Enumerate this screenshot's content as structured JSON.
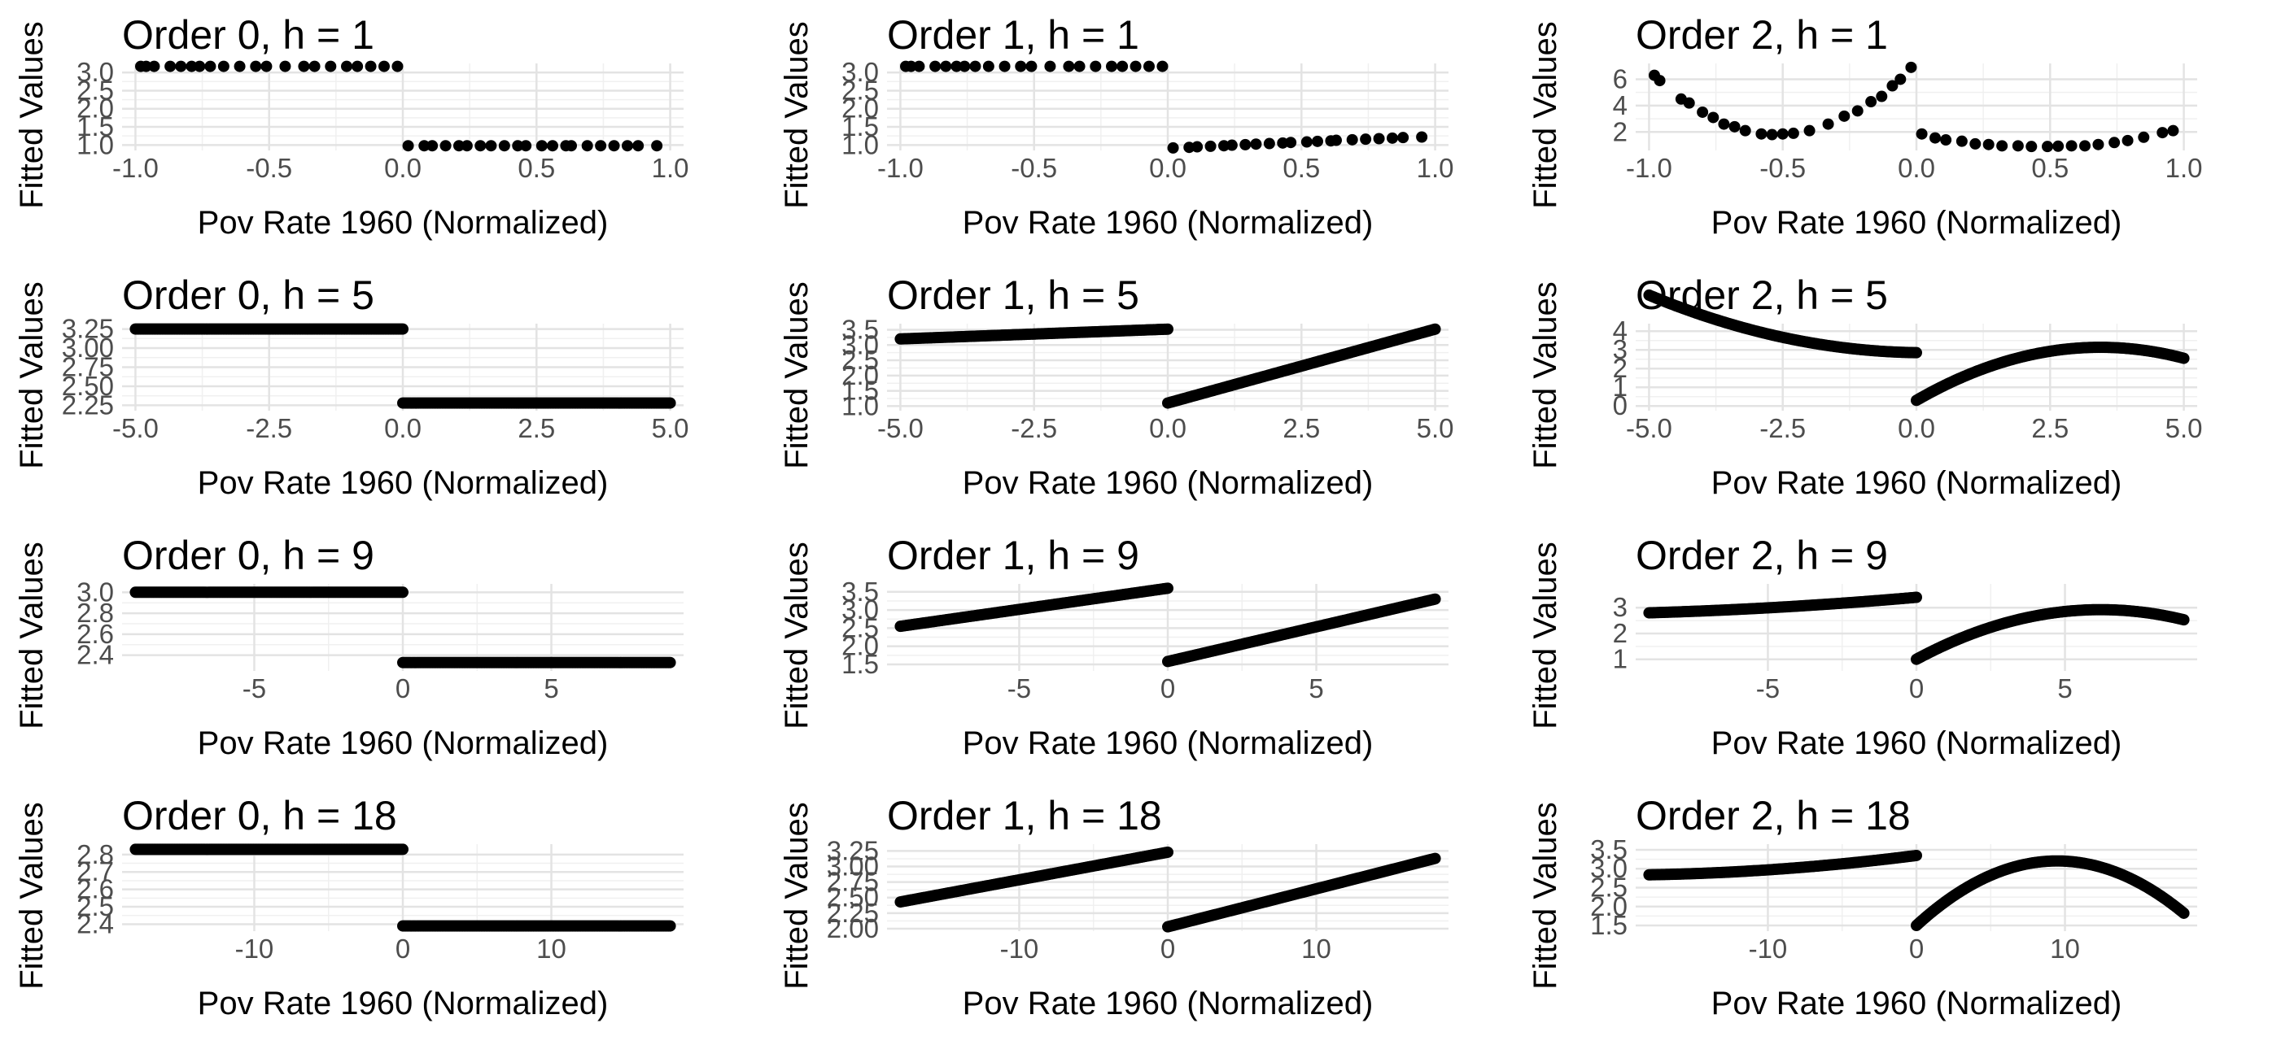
{
  "chart_data": [
    {
      "type": "scatter",
      "title": "Order 0, h = 1",
      "xlabel": "Pov Rate 1960 (Normalized)",
      "ylabel": "Fitted Values",
      "xlim": [
        -1.05,
        1.05
      ],
      "ylim": [
        0.85,
        3.25
      ],
      "xticks": [
        {
          "v": -1,
          "l": "-1.0"
        },
        {
          "v": -0.5,
          "l": "-0.5"
        },
        {
          "v": 0,
          "l": "0.0"
        },
        {
          "v": 0.5,
          "l": "0.5"
        },
        {
          "v": 1,
          "l": "1.0"
        }
      ],
      "yticks": [
        {
          "v": 1.0,
          "l": "1.0"
        },
        {
          "v": 1.5,
          "l": "1.5"
        },
        {
          "v": 2.0,
          "l": "2.0"
        },
        {
          "v": 2.5,
          "l": "2.5"
        },
        {
          "v": 3.0,
          "l": "3.0"
        }
      ],
      "grid": true,
      "legend": "none",
      "left": {
        "x": [
          -0.98,
          -0.96,
          -0.93,
          -0.87,
          -0.83,
          -0.79,
          -0.76,
          -0.72,
          -0.67,
          -0.61,
          -0.55,
          -0.51,
          -0.44,
          -0.37,
          -0.33,
          -0.27,
          -0.21,
          -0.17,
          -0.12,
          -0.07,
          -0.02
        ],
        "y": 3.17
      },
      "right": {
        "x": [
          0.02,
          0.08,
          0.11,
          0.16,
          0.21,
          0.24,
          0.29,
          0.33,
          0.38,
          0.43,
          0.46,
          0.52,
          0.56,
          0.61,
          0.63,
          0.69,
          0.74,
          0.79,
          0.84,
          0.88,
          0.95
        ],
        "y": 0.98
      }
    },
    {
      "type": "scatter",
      "title": "Order 1, h = 1",
      "xlabel": "Pov Rate 1960 (Normalized)",
      "ylabel": "Fitted Values",
      "xlim": [
        -1.05,
        1.05
      ],
      "ylim": [
        0.85,
        3.25
      ],
      "xticks": [
        {
          "v": -1,
          "l": "-1.0"
        },
        {
          "v": -0.5,
          "l": "-0.5"
        },
        {
          "v": 0,
          "l": "0.0"
        },
        {
          "v": 0.5,
          "l": "0.5"
        },
        {
          "v": 1,
          "l": "1.0"
        }
      ],
      "yticks": [
        {
          "v": 1.0,
          "l": "1.0"
        },
        {
          "v": 1.5,
          "l": "1.5"
        },
        {
          "v": 2.0,
          "l": "2.0"
        },
        {
          "v": 2.5,
          "l": "2.5"
        },
        {
          "v": 3.0,
          "l": "3.0"
        }
      ],
      "grid": true,
      "legend": "none",
      "left": {
        "x": [
          -0.98,
          -0.96,
          -0.93,
          -0.87,
          -0.83,
          -0.79,
          -0.76,
          -0.72,
          -0.67,
          -0.61,
          -0.55,
          -0.51,
          -0.44,
          -0.37,
          -0.33,
          -0.27,
          -0.21,
          -0.17,
          -0.12,
          -0.07,
          -0.02
        ],
        "y0": 3.17,
        "y1": 3.17
      },
      "right": {
        "x": [
          0.02,
          0.08,
          0.11,
          0.16,
          0.21,
          0.24,
          0.29,
          0.33,
          0.38,
          0.43,
          0.46,
          0.52,
          0.56,
          0.61,
          0.63,
          0.69,
          0.74,
          0.79,
          0.84,
          0.88,
          0.95
        ],
        "y0": 0.92,
        "y1": 1.22
      }
    },
    {
      "type": "scatter",
      "title": "Order 2, h = 1",
      "xlabel": "Pov Rate 1960 (Normalized)",
      "ylabel": "Fitted Values",
      "xlim": [
        -1.05,
        1.05
      ],
      "ylim": [
        0.6,
        7.2
      ],
      "xticks": [
        {
          "v": -1,
          "l": "-1.0"
        },
        {
          "v": -0.5,
          "l": "-0.5"
        },
        {
          "v": 0,
          "l": "0.0"
        },
        {
          "v": 0.5,
          "l": "0.5"
        },
        {
          "v": 1,
          "l": "1.0"
        }
      ],
      "yticks": [
        {
          "v": 2,
          "l": "2"
        },
        {
          "v": 4,
          "l": "4"
        },
        {
          "v": 6,
          "l": "6"
        }
      ],
      "grid": true,
      "legend": "none",
      "left": {
        "x": [
          -0.98,
          -0.96,
          -0.88,
          -0.85,
          -0.8,
          -0.76,
          -0.72,
          -0.68,
          -0.64,
          -0.58,
          -0.54,
          -0.5,
          -0.46,
          -0.4,
          -0.33,
          -0.27,
          -0.22,
          -0.17,
          -0.13,
          -0.09,
          -0.06,
          -0.02
        ],
        "y": [
          6.3,
          5.9,
          4.5,
          4.2,
          3.5,
          3.1,
          2.6,
          2.4,
          2.1,
          1.85,
          1.8,
          1.85,
          1.9,
          2.1,
          2.6,
          3.2,
          3.6,
          4.3,
          4.7,
          5.5,
          6.0,
          6.9
        ]
      },
      "right": {
        "x": [
          0.02,
          0.07,
          0.11,
          0.17,
          0.22,
          0.27,
          0.32,
          0.38,
          0.43,
          0.49,
          0.53,
          0.58,
          0.63,
          0.68,
          0.74,
          0.79,
          0.85,
          0.92,
          0.96
        ],
        "y": [
          1.85,
          1.55,
          1.4,
          1.3,
          1.1,
          1.05,
          0.95,
          0.95,
          0.9,
          0.9,
          0.92,
          0.95,
          0.95,
          1.05,
          1.2,
          1.35,
          1.6,
          1.95,
          2.1
        ]
      }
    },
    {
      "type": "scatter",
      "title": "Order 0, h = 5",
      "xlabel": "Pov Rate 1960 (Normalized)",
      "ylabel": "Fitted Values",
      "xlim": [
        -5.25,
        5.25
      ],
      "ylim": [
        2.18,
        3.32
      ],
      "xticks": [
        {
          "v": -5,
          "l": "-5.0"
        },
        {
          "v": -2.5,
          "l": "-2.5"
        },
        {
          "v": 0,
          "l": "0.0"
        },
        {
          "v": 2.5,
          "l": "2.5"
        },
        {
          "v": 5,
          "l": "5.0"
        }
      ],
      "yticks": [
        {
          "v": 2.25,
          "l": "2.25"
        },
        {
          "v": 2.5,
          "l": "2.50"
        },
        {
          "v": 2.75,
          "l": "2.75"
        },
        {
          "v": 3.0,
          "l": "3.00"
        },
        {
          "v": 3.25,
          "l": "3.25"
        }
      ],
      "grid": true,
      "legend": "none",
      "left": {
        "x0": -5,
        "x1": 0,
        "y0": 3.25,
        "y1": 3.25
      },
      "right": {
        "x0": 0,
        "x1": 5,
        "y0": 2.28,
        "y1": 2.28
      }
    },
    {
      "type": "scatter",
      "title": "Order 1, h = 5",
      "xlabel": "Pov Rate 1960 (Normalized)",
      "ylabel": "Fitted Values",
      "xlim": [
        -5.25,
        5.25
      ],
      "ylim": [
        0.85,
        3.7
      ],
      "xticks": [
        {
          "v": -5,
          "l": "-5.0"
        },
        {
          "v": -2.5,
          "l": "-2.5"
        },
        {
          "v": 0,
          "l": "0.0"
        },
        {
          "v": 2.5,
          "l": "2.5"
        },
        {
          "v": 5,
          "l": "5.0"
        }
      ],
      "yticks": [
        {
          "v": 1.0,
          "l": "1.0"
        },
        {
          "v": 1.5,
          "l": "1.5"
        },
        {
          "v": 2.0,
          "l": "2.0"
        },
        {
          "v": 2.5,
          "l": "2.5"
        },
        {
          "v": 3.0,
          "l": "3.0"
        },
        {
          "v": 3.5,
          "l": "3.5"
        }
      ],
      "grid": true,
      "legend": "none",
      "left": {
        "x0": -5,
        "x1": 0,
        "y0": 3.2,
        "y1": 3.52
      },
      "right": {
        "x0": 0,
        "x1": 5,
        "y0": 1.1,
        "y1": 3.52
      }
    },
    {
      "type": "scatter",
      "title": "Order 2, h = 5",
      "xlabel": "Pov Rate 1960 (Normalized)",
      "ylabel": "Fitted Values",
      "xlim": [
        -5.25,
        5.25
      ],
      "ylim": [
        -0.25,
        4.4
      ],
      "xticks": [
        {
          "v": -5,
          "l": "-5.0"
        },
        {
          "v": -2.5,
          "l": "-2.5"
        },
        {
          "v": 0,
          "l": "0.0"
        },
        {
          "v": 2.5,
          "l": "2.5"
        },
        {
          "v": 5,
          "l": "5.0"
        }
      ],
      "yticks": [
        {
          "v": 0,
          "l": "0"
        },
        {
          "v": 1,
          "l": "1"
        },
        {
          "v": 2,
          "l": "2"
        },
        {
          "v": 3,
          "l": "3"
        },
        {
          "v": 4,
          "l": "4"
        }
      ],
      "grid": true,
      "legend": "none",
      "left": {
        "x0": -5,
        "x1": 0,
        "poly": [
          2.85,
          -0.04,
          0.115
        ]
      },
      "right": {
        "x0": 0,
        "x1": 5,
        "poly": [
          0.3,
          1.65,
          -0.24
        ]
      }
    },
    {
      "type": "scatter",
      "title": "Order 0, h = 9",
      "xlabel": "Pov Rate 1960 (Normalized)",
      "ylabel": "Fitted Values",
      "xlim": [
        -9.45,
        9.45
      ],
      "ylim": [
        2.25,
        3.08
      ],
      "xticks": [
        {
          "v": -5,
          "l": "-5"
        },
        {
          "v": 0,
          "l": "0"
        },
        {
          "v": 5,
          "l": "5"
        }
      ],
      "yticks": [
        {
          "v": 2.4,
          "l": "2.4"
        },
        {
          "v": 2.6,
          "l": "2.6"
        },
        {
          "v": 2.8,
          "l": "2.8"
        },
        {
          "v": 3.0,
          "l": "3.0"
        }
      ],
      "grid": true,
      "legend": "none",
      "left": {
        "x0": -9,
        "x1": 0,
        "y0": 3.0,
        "y1": 3.0
      },
      "right": {
        "x0": 0,
        "x1": 9,
        "y0": 2.33,
        "y1": 2.33
      }
    },
    {
      "type": "scatter",
      "title": "Order 1, h = 9",
      "xlabel": "Pov Rate 1960 (Normalized)",
      "ylabel": "Fitted Values",
      "xlim": [
        -9.45,
        9.45
      ],
      "ylim": [
        1.32,
        3.72
      ],
      "xticks": [
        {
          "v": -5,
          "l": "-5"
        },
        {
          "v": 0,
          "l": "0"
        },
        {
          "v": 5,
          "l": "5"
        }
      ],
      "yticks": [
        {
          "v": 1.5,
          "l": "1.5"
        },
        {
          "v": 2.0,
          "l": "2.0"
        },
        {
          "v": 2.5,
          "l": "2.5"
        },
        {
          "v": 3.0,
          "l": "3.0"
        },
        {
          "v": 3.5,
          "l": "3.5"
        }
      ],
      "grid": true,
      "legend": "none",
      "left": {
        "x0": -9,
        "x1": 0,
        "y0": 2.55,
        "y1": 3.6
      },
      "right": {
        "x0": 0,
        "x1": 9,
        "y0": 1.58,
        "y1": 3.3
      }
    },
    {
      "type": "scatter",
      "title": "Order 2, h = 9",
      "xlabel": "Pov Rate 1960 (Normalized)",
      "ylabel": "Fitted Values",
      "xlim": [
        -9.45,
        9.45
      ],
      "ylim": [
        0.55,
        3.92
      ],
      "xticks": [
        {
          "v": -5,
          "l": "-5"
        },
        {
          "v": 0,
          "l": "0"
        },
        {
          "v": 5,
          "l": "5"
        }
      ],
      "yticks": [
        {
          "v": 1,
          "l": "1"
        },
        {
          "v": 2,
          "l": "2"
        },
        {
          "v": 3,
          "l": "3"
        }
      ],
      "grid": true,
      "legend": "none",
      "left": {
        "x0": -9,
        "x1": 0,
        "poly": [
          3.4,
          0.1,
          0.0037
        ]
      },
      "right": {
        "x0": 0,
        "x1": 9,
        "poly": [
          1.0,
          0.62,
          -0.05
        ]
      }
    },
    {
      "type": "scatter",
      "title": "Order 0, h = 18",
      "xlabel": "Pov Rate 1960 (Normalized)",
      "ylabel": "Fitted Values",
      "xlim": [
        -18.9,
        18.9
      ],
      "ylim": [
        2.36,
        2.86
      ],
      "xticks": [
        {
          "v": -10,
          "l": "-10"
        },
        {
          "v": 0,
          "l": "0"
        },
        {
          "v": 10,
          "l": "10"
        }
      ],
      "yticks": [
        {
          "v": 2.4,
          "l": "2.4"
        },
        {
          "v": 2.5,
          "l": "2.5"
        },
        {
          "v": 2.6,
          "l": "2.6"
        },
        {
          "v": 2.7,
          "l": "2.7"
        },
        {
          "v": 2.8,
          "l": "2.8"
        }
      ],
      "grid": true,
      "legend": "none",
      "left": {
        "x0": -18,
        "x1": 0,
        "y0": 2.83,
        "y1": 2.83
      },
      "right": {
        "x0": 0,
        "x1": 18,
        "y0": 2.39,
        "y1": 2.39
      }
    },
    {
      "type": "scatter",
      "title": "Order 1, h = 18",
      "xlabel": "Pov Rate 1960 (Normalized)",
      "ylabel": "Fitted Values",
      "xlim": [
        -18.9,
        18.9
      ],
      "ylim": [
        1.96,
        3.36
      ],
      "xticks": [
        {
          "v": -10,
          "l": "-10"
        },
        {
          "v": 0,
          "l": "0"
        },
        {
          "v": 10,
          "l": "10"
        }
      ],
      "yticks": [
        {
          "v": 2.0,
          "l": "2.00"
        },
        {
          "v": 2.25,
          "l": "2.25"
        },
        {
          "v": 2.5,
          "l": "2.50"
        },
        {
          "v": 2.75,
          "l": "2.75"
        },
        {
          "v": 3.0,
          "l": "3.00"
        },
        {
          "v": 3.25,
          "l": "3.25"
        }
      ],
      "grid": true,
      "legend": "none",
      "left": {
        "x0": -18,
        "x1": 0,
        "y0": 2.43,
        "y1": 3.23
      },
      "right": {
        "x0": 0,
        "x1": 18,
        "y0": 2.03,
        "y1": 3.13
      }
    },
    {
      "type": "scatter",
      "title": "Order 2, h = 18",
      "xlabel": "Pov Rate 1960 (Normalized)",
      "ylabel": "Fitted Values",
      "xlim": [
        -18.9,
        18.9
      ],
      "ylim": [
        1.35,
        3.65
      ],
      "xticks": [
        {
          "v": -10,
          "l": "-10"
        },
        {
          "v": 0,
          "l": "0"
        },
        {
          "v": 10,
          "l": "10"
        }
      ],
      "yticks": [
        {
          "v": 1.5,
          "l": "1.5"
        },
        {
          "v": 2.0,
          "l": "2.0"
        },
        {
          "v": 2.5,
          "l": "2.5"
        },
        {
          "v": 3.0,
          "l": "3.0"
        },
        {
          "v": 3.5,
          "l": "3.5"
        }
      ],
      "grid": true,
      "legend": "none",
      "left": {
        "x0": -18,
        "x1": 0,
        "poly": [
          3.35,
          0.05,
          0.0012
        ]
      },
      "right": {
        "x0": 0,
        "x1": 18,
        "poly": [
          1.5,
          0.36,
          -0.019
        ]
      }
    }
  ]
}
